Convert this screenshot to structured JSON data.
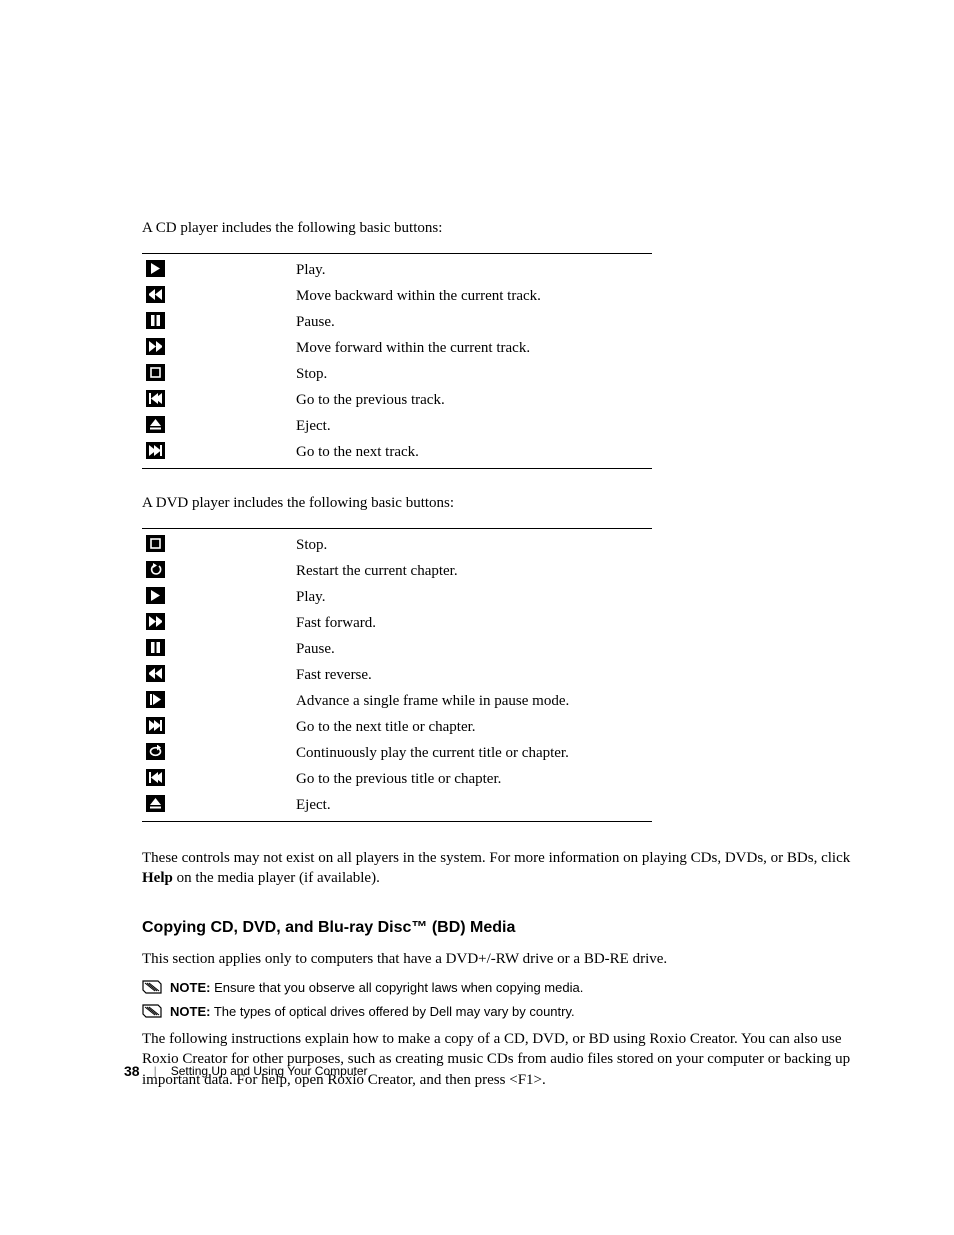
{
  "cd_intro": "A CD player includes the following basic buttons:",
  "dvd_intro": "A DVD player includes the following basic buttons:",
  "cd_buttons": [
    {
      "icon": "play",
      "desc": "Play."
    },
    {
      "icon": "rewind",
      "desc": "Move backward within the current track."
    },
    {
      "icon": "pause",
      "desc": "Pause."
    },
    {
      "icon": "ffwd",
      "desc": "Move forward within the current track."
    },
    {
      "icon": "stop",
      "desc": "Stop."
    },
    {
      "icon": "prev",
      "desc": "Go to the previous track."
    },
    {
      "icon": "eject",
      "desc": "Eject."
    },
    {
      "icon": "next",
      "desc": "Go to the next track."
    }
  ],
  "dvd_buttons": [
    {
      "icon": "stop",
      "desc": "Stop."
    },
    {
      "icon": "restart",
      "desc": "Restart the current chapter."
    },
    {
      "icon": "play",
      "desc": "Play."
    },
    {
      "icon": "ffwd",
      "desc": "Fast forward."
    },
    {
      "icon": "pause",
      "desc": "Pause."
    },
    {
      "icon": "rewind",
      "desc": "Fast reverse."
    },
    {
      "icon": "frame",
      "desc": "Advance a single frame while in pause mode."
    },
    {
      "icon": "next",
      "desc": "Go to the next title or chapter."
    },
    {
      "icon": "repeat",
      "desc": "Continuously play the current title or chapter."
    },
    {
      "icon": "prev",
      "desc": "Go to the previous title or chapter."
    },
    {
      "icon": "eject",
      "desc": "Eject."
    }
  ],
  "controls_note_pre": "These controls may not exist on all players in the system. For more information on playing CDs, DVDs, or BDs, click ",
  "controls_note_bold": "Help",
  "controls_note_post": " on the media player (if available).",
  "section_heading": "Copying CD, DVD, and Blu-ray Disc™ (BD) Media",
  "section_intro": "This section applies only to computers that have a DVD+/-RW drive or a BD-RE drive.",
  "note1_label": "NOTE:",
  "note1_text": " Ensure that you observe all copyright laws when copying media.",
  "note2_label": "NOTE:",
  "note2_text": " The types of optical drives offered by Dell may vary by country.",
  "instructions": "The following instructions explain how to make a copy of a CD, DVD, or BD using Roxio Creator. You can also use Roxio Creator for other purposes, such as creating music CDs from audio files stored on your computer or backing up important data. For help, open Roxio Creator, and then press <F1>.",
  "page_number": "38",
  "footer_text": "Setting Up and Using Your Computer",
  "colors": {
    "icon_bg": "#000000",
    "icon_fg": "#ffffff",
    "text": "#000000",
    "page_bg": "#ffffff"
  },
  "typography": {
    "body_font": "serif",
    "heading_font": "sans-serif",
    "body_size_pt": 11,
    "heading_size_pt": 12,
    "note_size_pt": 10
  }
}
